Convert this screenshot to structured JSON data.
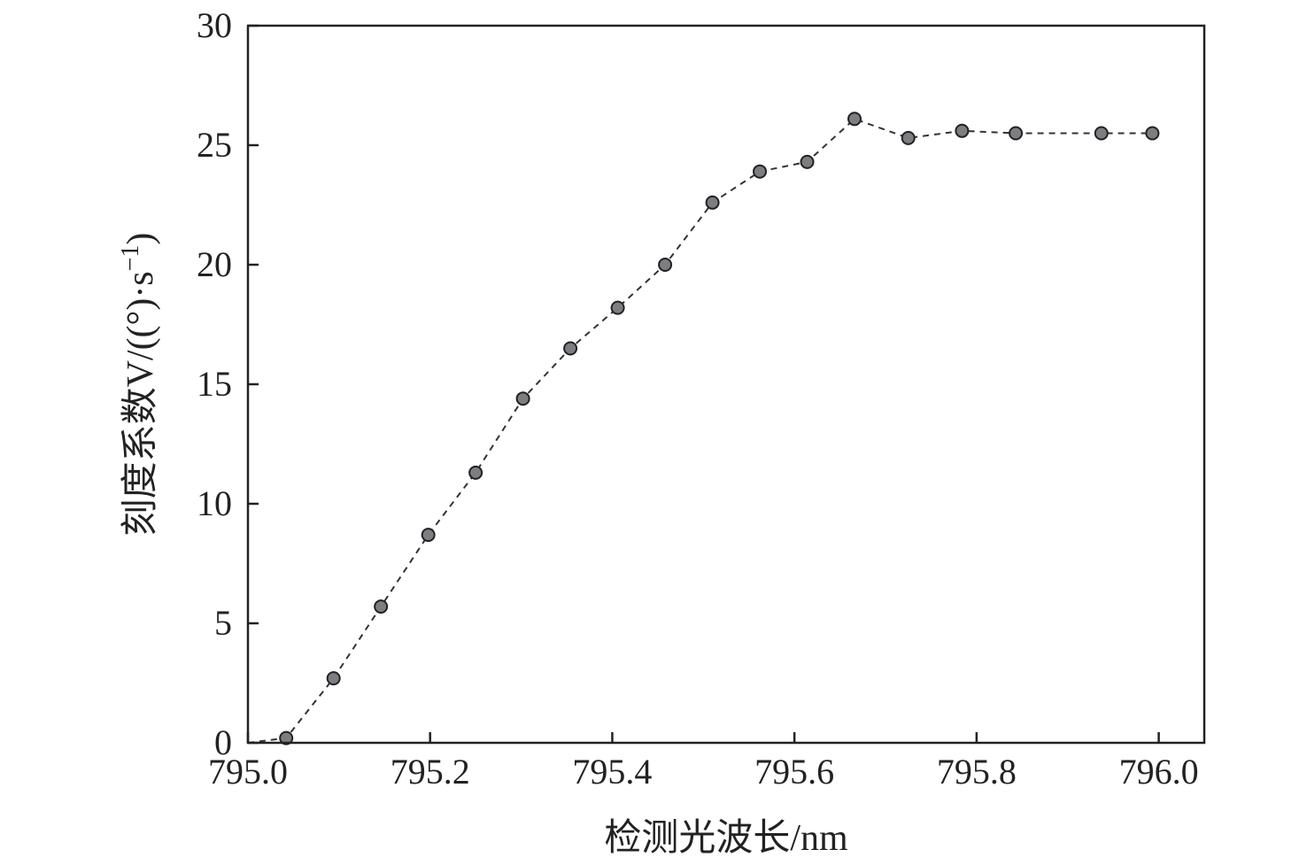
{
  "chart_data": {
    "type": "line",
    "title": "",
    "xlabel": "检测光波长/nm",
    "ylabel": "刻度系数V/((°)·s",
    "ylabel_sup": "−1",
    "ylabel_close": ")",
    "xlim": [
      795.0,
      796.05
    ],
    "ylim": [
      0,
      30
    ],
    "xticks": [
      795.0,
      795.2,
      795.4,
      795.6,
      795.8,
      796.0
    ],
    "xtick_labels": [
      "795.0",
      "795.2",
      "795.4",
      "795.6",
      "795.8",
      "796.0"
    ],
    "yticks": [
      0,
      5,
      10,
      15,
      20,
      25,
      30
    ],
    "ytick_labels": [
      "0",
      "5",
      "10",
      "15",
      "20",
      "25",
      "30"
    ],
    "grid": false,
    "series": [
      {
        "x": [
          795.0,
          795.042,
          795.094,
          795.146,
          795.198,
          795.25,
          795.302,
          795.354,
          795.406,
          795.458,
          795.51,
          795.562,
          795.614,
          795.666,
          795.725,
          795.784,
          795.843,
          795.937,
          795.993
        ],
        "y": [
          0.0,
          0.2,
          2.7,
          5.7,
          8.7,
          11.3,
          14.4,
          16.5,
          18.2,
          20.0,
          22.6,
          23.9,
          24.3,
          26.1,
          25.3,
          25.6,
          25.5,
          25.5,
          25.5
        ],
        "marker_from_index": 1,
        "line_style": "dashed",
        "marker_color": "#7d7d82"
      }
    ]
  }
}
